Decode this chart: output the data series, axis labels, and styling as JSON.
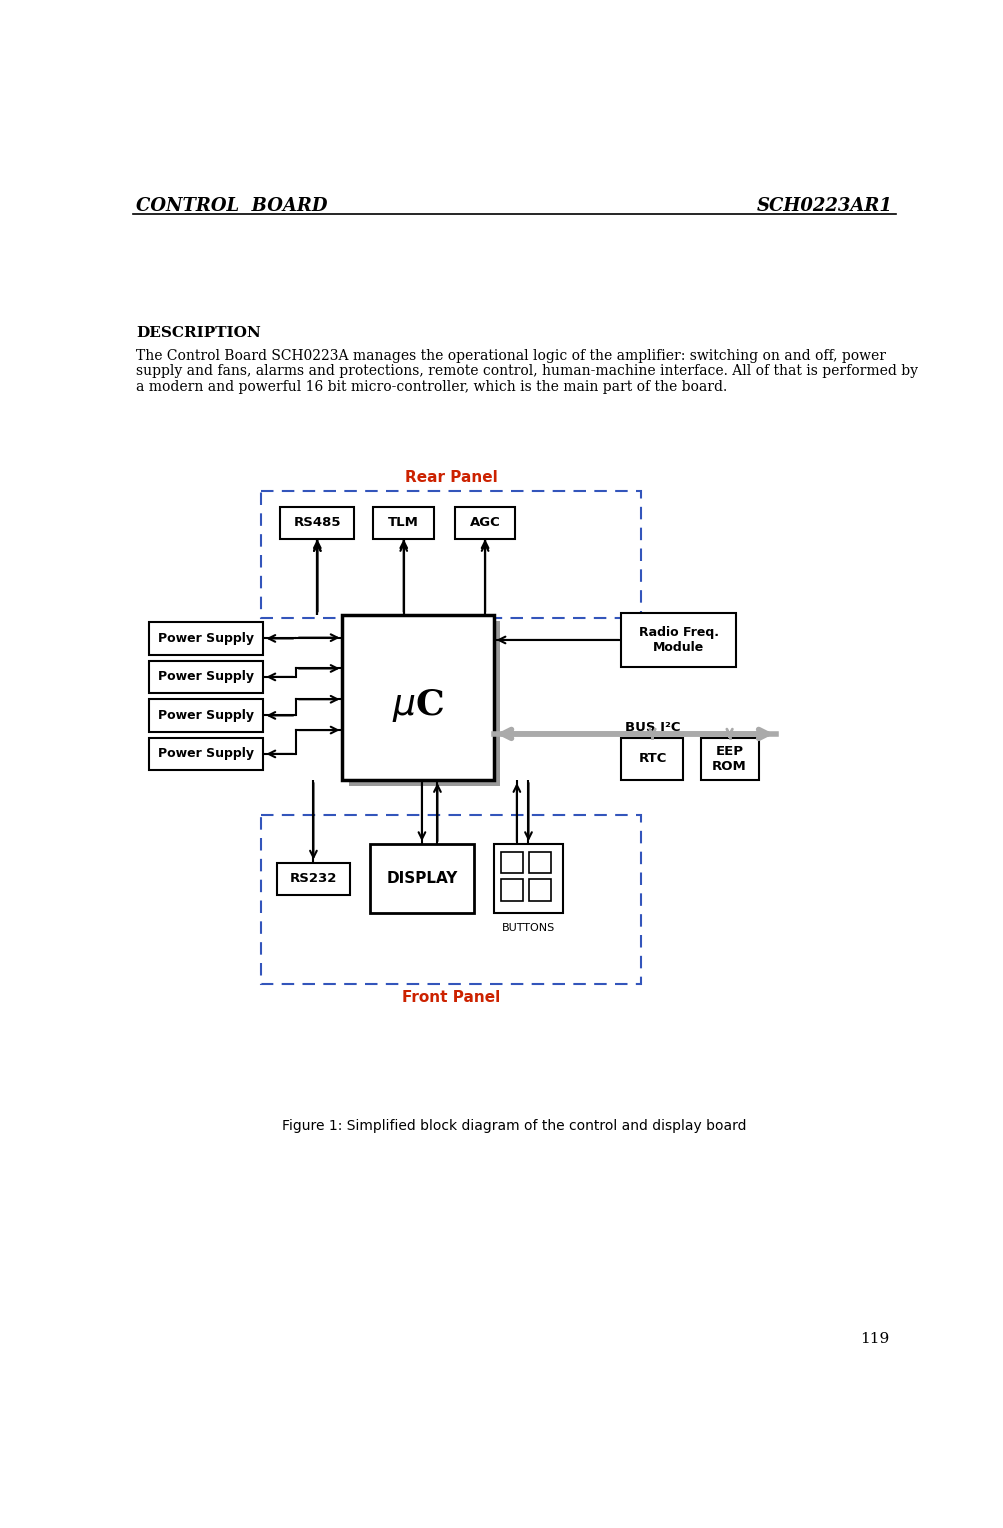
{
  "header_left": "CONTROL  BOARD",
  "header_right": "SCH0223AR1",
  "page_number": "119",
  "description_title": "DESCRIPTION",
  "description_line1": "The Control Board SCH0223A manages the operational logic of the amplifier: switching on and off, power",
  "description_line2": "supply and fans, alarms and protections, remote control, human-machine interface. All of that is performed by",
  "description_line3": "a modern and powerful 16 bit micro-controller, which is the main part of the board.",
  "figure_caption": "Figure 1: Simplified block diagram of the control and display board",
  "bg_color": "#ffffff",
  "text_color": "#000000",
  "dashed_color": "#3355bb",
  "arrow_color": "#000000",
  "gray_color": "#aaaaaa",
  "shadow_color": "#999999",
  "red_label_color": "#cc2200",
  "rear_panel_text": "Rear Panel",
  "front_panel_text": "Front Panel",
  "bus_i2c_text": "BUS I²C"
}
